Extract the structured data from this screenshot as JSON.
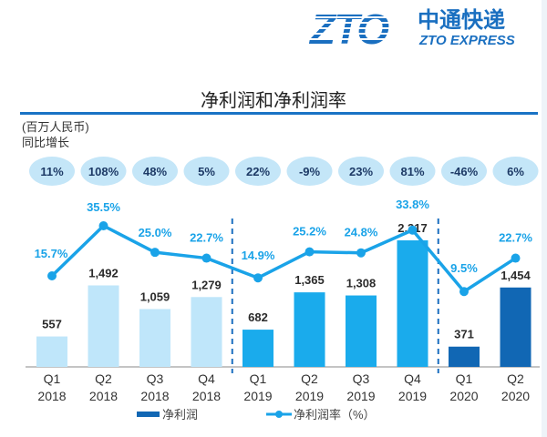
{
  "header": {
    "logo_mark": "ZTO",
    "logo_cn": "中通快递",
    "logo_en": "ZTO EXPRESS",
    "brand_color": "#1a6fc0"
  },
  "units_label": "(百万人民币)",
  "yoy_label": "同比增长",
  "chart_data": {
    "type": "bar",
    "title": "净利润和净利润率",
    "categories": [
      "Q1 2018",
      "Q2 2018",
      "Q3 2018",
      "Q4 2018",
      "Q1 2019",
      "Q2 2019",
      "Q3 2019",
      "Q4 2019",
      "Q1 2020",
      "Q2 2020"
    ],
    "quarter_labels": [
      "Q1",
      "Q2",
      "Q3",
      "Q4",
      "Q1",
      "Q2",
      "Q3",
      "Q4",
      "Q1",
      "Q2"
    ],
    "year_labels": [
      "2018",
      "2018",
      "2018",
      "2018",
      "2019",
      "2019",
      "2019",
      "2019",
      "2020",
      "2020"
    ],
    "series": [
      {
        "name": "净利润",
        "type": "bar",
        "unit": "百万人民币",
        "values": [
          557,
          1492,
          1059,
          1279,
          682,
          1365,
          1308,
          2317,
          371,
          1454
        ],
        "labels": [
          "557",
          "1,492",
          "1,059",
          "1,279",
          "682",
          "1,365",
          "1,308",
          "2,317",
          "371",
          "1,454"
        ],
        "colors": [
          "#bfe6fa",
          "#bfe6fa",
          "#bfe6fa",
          "#bfe6fa",
          "#1aabec",
          "#1aabec",
          "#1aabec",
          "#1aabec",
          "#1167b4",
          "#1167b4"
        ]
      },
      {
        "name": "净利润率（%）",
        "type": "line",
        "values": [
          15.7,
          35.5,
          25.0,
          22.7,
          14.9,
          25.2,
          24.8,
          33.8,
          9.5,
          22.7
        ],
        "labels": [
          "15.7%",
          "35.5%",
          "25.0%",
          "22.7%",
          "14.9%",
          "25.2%",
          "24.8%",
          "33.8%",
          "9.5%",
          "22.7%"
        ],
        "color": "#1aa3e8"
      }
    ],
    "yoy_growth": [
      "11%",
      "108%",
      "48%",
      "5%",
      "22%",
      "-9%",
      "23%",
      "81%",
      "-46%",
      "6%"
    ],
    "yoy_bubble_color": "#c4e6f8",
    "dividers_after": [
      "Q4 2018",
      "Q4 2019"
    ],
    "legend": [
      {
        "label": "净利润",
        "type": "bar",
        "color": "#1167b4"
      },
      {
        "label": "净利润率（%）",
        "type": "line",
        "color": "#1aa3e8"
      }
    ],
    "legend_position": "bottom",
    "bar_ylim": [
      0,
      2317
    ],
    "line_ylim": [
      9.5,
      35.5
    ],
    "grid": false
  }
}
